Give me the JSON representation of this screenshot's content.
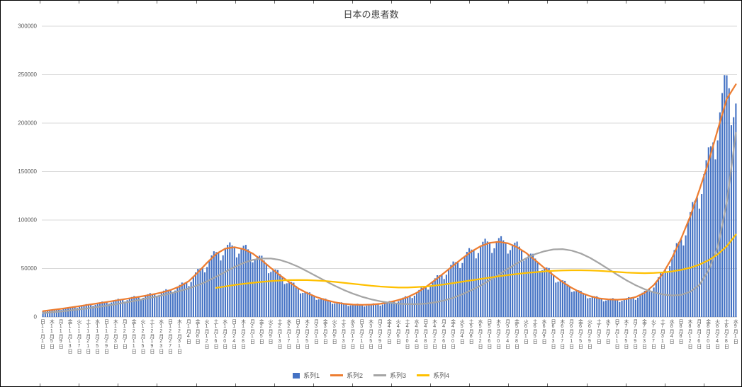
{
  "window": {
    "background": "#FFFFFF",
    "border_color": "#000000"
  },
  "chart": {
    "title": "日本の患者数",
    "text_color": "#595959",
    "title_color": "#404040",
    "gridline_color": "#D9D9D9",
    "axis_line_color": "#BFBFBF"
  },
  "legend": {
    "items": [
      {
        "label": "系列1",
        "color": "#4472C4",
        "marker": "bar"
      },
      {
        "label": "系列2",
        "color": "#ED7D31",
        "marker": "line"
      },
      {
        "label": "系列3",
        "color": "#A5A5A5",
        "marker": "line"
      },
      {
        "label": "系列4",
        "color": "#FFC000",
        "marker": "line"
      }
    ]
  },
  "chart_data": {
    "type": "combo",
    "title": "日本の患者数",
    "grid": "horizontal",
    "legend_position": "bottom",
    "y_axis": {
      "min": 0,
      "max": 300000,
      "tick_interval": 50000,
      "tick_labels": [
        "0",
        "50000",
        "100000",
        "150000",
        "200000",
        "250000",
        "300000"
      ]
    },
    "x_axis": {
      "labels": [
        "日11月1日",
        "木11月5日",
        "月11月9日",
        "金11月13日",
        "火11月17日",
        "土11月21日",
        "水11月25日",
        "日11月29日",
        "木12月3日",
        "月12月7日",
        "金12月11日",
        "火12月15日",
        "土12月19日",
        "水12月23日",
        "日12月27日",
        "木12月31日",
        "月1月4日",
        "金1月8日",
        "火1月12日",
        "土1月16日",
        "水1月20日",
        "日1月24日",
        "木1月28日",
        "月2月1日",
        "金2月5日",
        "火2月9日",
        "土2月13日",
        "水2月17日",
        "日2月21日",
        "木2月25日",
        "月3月1日",
        "金3月5日",
        "火3月9日",
        "土3月13日",
        "水3月17日",
        "日3月21日",
        "木3月25日",
        "月3月29日",
        "金4月2日",
        "火4月6日",
        "土4月10日",
        "水4月14日",
        "日4月18日",
        "木4月22日",
        "月4月26日",
        "金4月30日",
        "火5月4日",
        "土5月8日",
        "水5月12日",
        "日5月16日",
        "木5月20日",
        "月5月24日",
        "金5月28日",
        "火6月1日",
        "土6月5日",
        "水6月9日",
        "日6月13日",
        "木6月17日",
        "月6月21日",
        "金6月25日",
        "火6月29日",
        "土7月3日",
        "水7月7日",
        "日7月11日",
        "木7月15日",
        "月7月19日",
        "金7月23日",
        "火7月27日",
        "土7月31日",
        "水8月4日",
        "日8月8日",
        "木8月12日",
        "月8月16日",
        "金8月20日",
        "火8月24日",
        "土8月28日",
        "水9月1日"
      ]
    },
    "series": [
      {
        "name": "系列1",
        "type": "bar",
        "color": "#4472C4",
        "weekly_pattern": [
          1.0,
          0.86,
          0.92,
          1.01,
          1.05,
          1.08,
          1.03
        ],
        "values": [
          6000,
          7200,
          8400,
          9800,
          11200,
          12600,
          14000,
          15500,
          17000,
          18500,
          20000,
          21500,
          23200,
          25200,
          27800,
          31500,
          37000,
          46000,
          56000,
          65000,
          70500,
          72000,
          70000,
          65500,
          58500,
          50500,
          43000,
          36000,
          29500,
          24500,
          20500,
          17500,
          15200,
          13600,
          12800,
          12500,
          12800,
          13600,
          15200,
          17500,
          20500,
          25000,
          31000,
          38000,
          45500,
          53000,
          60500,
          67500,
          73000,
          76500,
          77500,
          76000,
          72000,
          66000,
          58500,
          50500,
          43000,
          36000,
          30000,
          25000,
          21500,
          19200,
          18200,
          17800,
          18500,
          20500,
          25000,
          33000,
          45000,
          61000,
          80000,
          103000,
          130000,
          162000,
          198000,
          242000,
          218000
        ]
      },
      {
        "name": "系列2",
        "type": "line",
        "color": "#ED7D31",
        "values": [
          6000,
          7200,
          8400,
          9800,
          11200,
          12600,
          14000,
          15500,
          17000,
          18500,
          20000,
          21500,
          23200,
          25200,
          27800,
          31500,
          37000,
          46000,
          56000,
          65000,
          70500,
          72000,
          70000,
          65500,
          58500,
          50500,
          43000,
          36000,
          29500,
          24500,
          20500,
          17500,
          15200,
          13600,
          12800,
          12500,
          12800,
          13600,
          15200,
          17500,
          20500,
          25000,
          31000,
          38000,
          45500,
          53000,
          60500,
          67500,
          73000,
          76500,
          77500,
          76000,
          72000,
          66000,
          58500,
          50500,
          43000,
          36000,
          30000,
          25000,
          21500,
          19200,
          18200,
          17800,
          18500,
          20500,
          25000,
          33000,
          45000,
          61000,
          81000,
          104000,
          131000,
          160000,
          193000,
          225000,
          240000
        ]
      },
      {
        "name": "系列3",
        "type": "line",
        "color": "#A5A5A5",
        "values": [
          4000,
          4800,
          5700,
          6700,
          7800,
          9000,
          10300,
          11700,
          13200,
          14800,
          16500,
          18300,
          20200,
          22200,
          24400,
          26800,
          29500,
          32800,
          36800,
          41500,
          46500,
          51500,
          55800,
          58800,
          60300,
          60300,
          58800,
          55800,
          51800,
          47000,
          42000,
          37000,
          32200,
          27800,
          24000,
          20800,
          18200,
          16200,
          14700,
          13700,
          13200,
          13200,
          13800,
          15000,
          17000,
          19800,
          23400,
          27600,
          32400,
          37800,
          43600,
          49600,
          55400,
          60600,
          64800,
          67800,
          69700,
          70000,
          68500,
          65500,
          61000,
          55500,
          49500,
          43500,
          37800,
          32800,
          28600,
          25400,
          23200,
          22200,
          22800,
          26000,
          33000,
          48000,
          72000,
          118000,
          190000
        ]
      },
      {
        "name": "系列4",
        "type": "line",
        "color": "#FFC000",
        "start_index": 19,
        "values": [
          30000,
          31500,
          33000,
          34200,
          35200,
          36200,
          37000,
          37600,
          38000,
          38200,
          38000,
          37600,
          37000,
          36200,
          35200,
          34200,
          33200,
          32200,
          31400,
          30800,
          30400,
          30400,
          30800,
          31400,
          32400,
          33600,
          35000,
          36400,
          37800,
          39200,
          40600,
          42000,
          43200,
          44400,
          45400,
          46200,
          47000,
          47600,
          48000,
          48200,
          48200,
          48000,
          47600,
          47000,
          46400,
          45800,
          45400,
          45200,
          45400,
          46000,
          47000,
          48600,
          50800,
          54000,
          58500,
          64500,
          73000,
          85000
        ]
      }
    ]
  }
}
